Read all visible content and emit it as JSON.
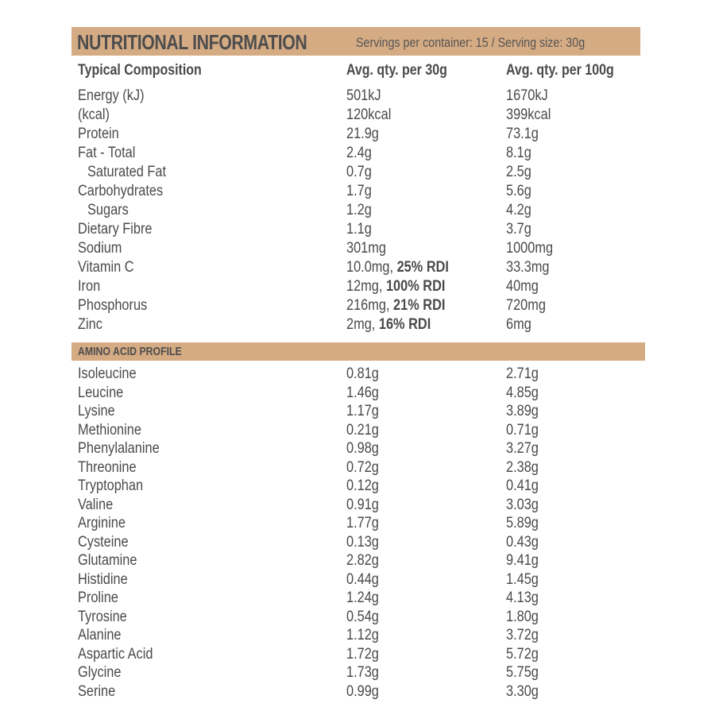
{
  "header": {
    "title": "NUTRITIONAL INFORMATION",
    "subtitle": "Servings per container: 15 / Serving size: 30g",
    "band_color": "#d5ab84"
  },
  "columns": {
    "col1": "Typical Composition",
    "col2": "Avg. qty. per 30g",
    "col3": "Avg. qty. per 100g"
  },
  "nutrients": [
    {
      "name": "Energy (kJ)",
      "per_serving": "501kJ",
      "rdi": "",
      "per_100g": "1670kJ",
      "indent": false
    },
    {
      "name": "(kcal)",
      "per_serving": "120kcal",
      "rdi": "",
      "per_100g": "399kcal",
      "indent": false
    },
    {
      "name": "Protein",
      "per_serving": "21.9g",
      "rdi": "",
      "per_100g": "73.1g",
      "indent": false
    },
    {
      "name": "Fat - Total",
      "per_serving": "2.4g",
      "rdi": "",
      "per_100g": "8.1g",
      "indent": false
    },
    {
      "name": "Saturated Fat",
      "per_serving": "0.7g",
      "rdi": "",
      "per_100g": "2.5g",
      "indent": true
    },
    {
      "name": "Carbohydrates",
      "per_serving": "1.7g",
      "rdi": "",
      "per_100g": "5.6g",
      "indent": false
    },
    {
      "name": "Sugars",
      "per_serving": "1.2g",
      "rdi": "",
      "per_100g": "4.2g",
      "indent": true
    },
    {
      "name": "Dietary Fibre",
      "per_serving": "1.1g",
      "rdi": "",
      "per_100g": "3.7g",
      "indent": false
    },
    {
      "name": "Sodium",
      "per_serving": "301mg",
      "rdi": "",
      "per_100g": "1000mg",
      "indent": false
    },
    {
      "name": "Vitamin C",
      "per_serving": "10.0mg, ",
      "rdi": "25% RDI",
      "per_100g": "33.3mg",
      "indent": false
    },
    {
      "name": "Iron",
      "per_serving": "12mg, ",
      "rdi": "100% RDI",
      "per_100g": "40mg",
      "indent": false
    },
    {
      "name": "Phosphorus",
      "per_serving": "216mg, ",
      "rdi": "21% RDI",
      "per_100g": "720mg",
      "indent": false
    },
    {
      "name": "Zinc",
      "per_serving": "2mg, ",
      "rdi": "16% RDI",
      "per_100g": "6mg",
      "indent": false
    }
  ],
  "amino_section": {
    "label": "AMINO ACID PROFILE"
  },
  "amino_acids": [
    {
      "name": "Isoleucine",
      "per_serving": "0.81g",
      "per_100g": "2.71g"
    },
    {
      "name": "Leucine",
      "per_serving": "1.46g",
      "per_100g": "4.85g"
    },
    {
      "name": "Lysine",
      "per_serving": "1.17g",
      "per_100g": "3.89g"
    },
    {
      "name": "Methionine",
      "per_serving": "0.21g",
      "per_100g": "0.71g"
    },
    {
      "name": "Phenylalanine",
      "per_serving": "0.98g",
      "per_100g": "3.27g"
    },
    {
      "name": "Threonine",
      "per_serving": "0.72g",
      "per_100g": "2.38g"
    },
    {
      "name": "Tryptophan",
      "per_serving": "0.12g",
      "per_100g": "0.41g"
    },
    {
      "name": "Valine",
      "per_serving": "0.91g",
      "per_100g": "3.03g"
    },
    {
      "name": "Arginine",
      "per_serving": "1.77g",
      "per_100g": "5.89g"
    },
    {
      "name": "Cysteine",
      "per_serving": "0.13g",
      "per_100g": "0.43g"
    },
    {
      "name": "Glutamine",
      "per_serving": "2.82g",
      "per_100g": "9.41g"
    },
    {
      "name": "Histidine",
      "per_serving": "0.44g",
      "per_100g": "1.45g"
    },
    {
      "name": "Proline",
      "per_serving": "1.24g",
      "per_100g": "4.13g"
    },
    {
      "name": "Tyrosine",
      "per_serving": "0.54g",
      "per_100g": "1.80g"
    },
    {
      "name": "Alanine",
      "per_serving": "1.12g",
      "per_100g": "3.72g"
    },
    {
      "name": "Aspartic Acid",
      "per_serving": "1.72g",
      "per_100g": "5.72g"
    },
    {
      "name": "Glycine",
      "per_serving": "1.73g",
      "per_100g": "5.75g"
    },
    {
      "name": "Serine",
      "per_serving": "0.99g",
      "per_100g": "3.30g"
    }
  ]
}
